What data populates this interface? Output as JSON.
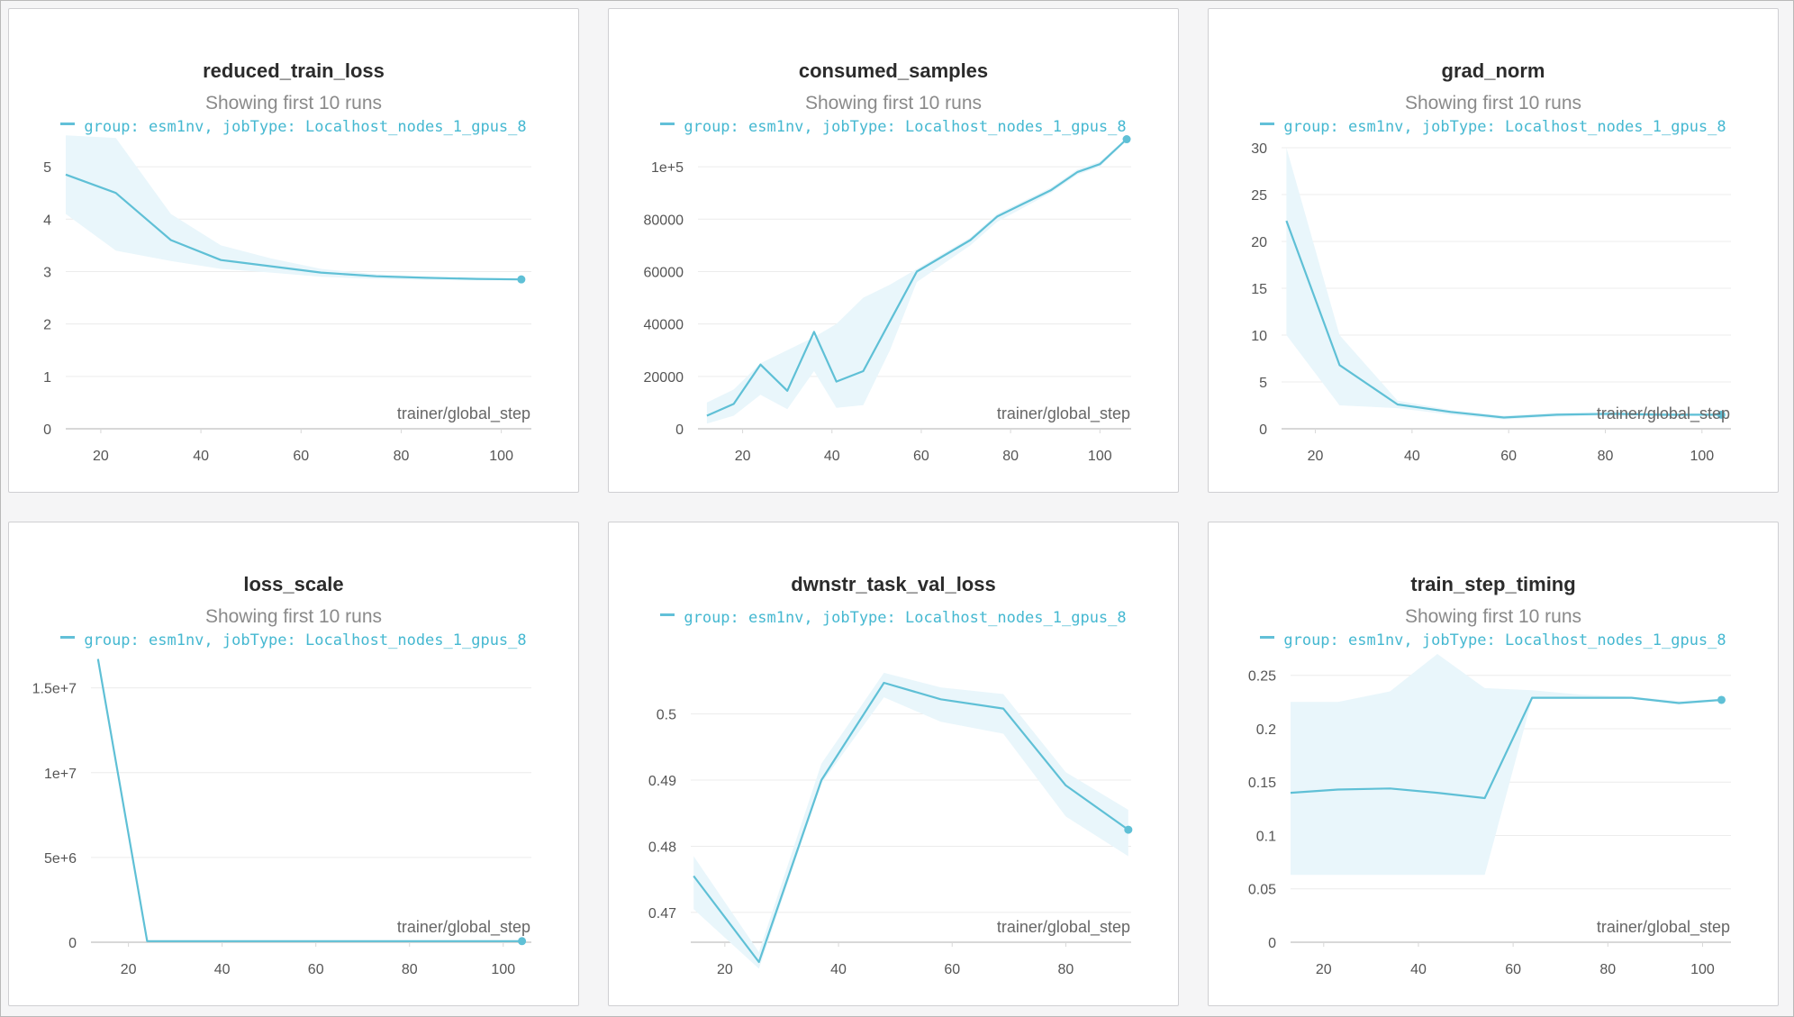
{
  "colors": {
    "line": "#5fc0d6",
    "band": "#e9f6fb",
    "grid": "#ececec",
    "axis": "#d8d8d8"
  },
  "panels": [
    {
      "title": "reduced_train_loss",
      "subtitle": "Showing first 10 runs",
      "legend": "group: esm1nv, jobType: Localhost_nodes_1_gpus_8",
      "xlabel": "trainer/global_step"
    },
    {
      "title": "consumed_samples",
      "subtitle": "Showing first 10 runs",
      "legend": "group: esm1nv, jobType: Localhost_nodes_1_gpus_8",
      "xlabel": "trainer/global_step"
    },
    {
      "title": "grad_norm",
      "subtitle": "Showing first 10 runs",
      "legend": "group: esm1nv, jobType: Localhost_nodes_1_gpus_8",
      "xlabel": "trainer/global_step"
    },
    {
      "title": "loss_scale",
      "subtitle": "Showing first 10 runs",
      "legend": "group: esm1nv, jobType: Localhost_nodes_1_gpus_8",
      "xlabel": "trainer/global_step"
    },
    {
      "title": "dwnstr_task_val_loss",
      "subtitle": "",
      "legend": "group: esm1nv, jobType: Localhost_nodes_1_gpus_8",
      "xlabel": "trainer/global_step"
    },
    {
      "title": "train_step_timing",
      "subtitle": "Showing first 10 runs",
      "legend": "group: esm1nv, jobType: Localhost_nodes_1_gpus_8",
      "xlabel": "trainer/global_step"
    }
  ],
  "chart_data": [
    {
      "type": "line",
      "title": "reduced_train_loss",
      "xlabel": "trainer/global_step",
      "ylabel": "",
      "xlim": [
        13,
        106
      ],
      "ylim": [
        0,
        5.5
      ],
      "xticks": [
        {
          "v": 20,
          "l": "20"
        },
        {
          "v": 40,
          "l": "40"
        },
        {
          "v": 60,
          "l": "60"
        },
        {
          "v": 80,
          "l": "80"
        },
        {
          "v": 100,
          "l": "100"
        }
      ],
      "yticks": [
        {
          "v": 0,
          "l": "0"
        },
        {
          "v": 1,
          "l": "1"
        },
        {
          "v": 2,
          "l": "2"
        },
        {
          "v": 3,
          "l": "3"
        },
        {
          "v": 4,
          "l": "4"
        },
        {
          "v": 5,
          "l": "5"
        }
      ],
      "series": [
        {
          "name": "group: esm1nv, jobType: Localhost_nodes_1_gpus_8",
          "x": [
            13,
            23,
            34,
            44,
            54,
            64,
            75,
            85,
            95,
            104
          ],
          "y": [
            4.85,
            4.5,
            3.6,
            3.22,
            3.1,
            2.98,
            2.91,
            2.88,
            2.86,
            2.85
          ],
          "min": [
            4.1,
            3.4,
            3.2,
            3.05,
            2.98,
            2.9,
            2.86,
            2.84,
            2.83,
            2.83
          ],
          "max": [
            5.6,
            5.55,
            4.1,
            3.5,
            3.25,
            3.05,
            2.95,
            2.9,
            2.88,
            2.87
          ]
        }
      ]
    },
    {
      "type": "line",
      "title": "consumed_samples",
      "xlabel": "trainer/global_step",
      "ylabel": "",
      "xlim": [
        10,
        107
      ],
      "ylim": [
        0,
        110000
      ],
      "xticks": [
        {
          "v": 20,
          "l": "20"
        },
        {
          "v": 40,
          "l": "40"
        },
        {
          "v": 60,
          "l": "60"
        },
        {
          "v": 80,
          "l": "80"
        },
        {
          "v": 100,
          "l": "100"
        }
      ],
      "yticks": [
        {
          "v": 0,
          "l": "0"
        },
        {
          "v": 20000,
          "l": "20000"
        },
        {
          "v": 40000,
          "l": "40000"
        },
        {
          "v": 60000,
          "l": "60000"
        },
        {
          "v": 80000,
          "l": "80000"
        },
        {
          "v": 100000,
          "l": "1e+5"
        }
      ],
      "series": [
        {
          "name": "group: esm1nv, jobType: Localhost_nodes_1_gpus_8",
          "x": [
            12,
            18,
            24,
            30,
            36,
            41,
            47,
            53,
            59,
            65,
            71,
            77,
            83,
            89,
            95,
            100,
            106
          ],
          "y": [
            5000,
            9500,
            24500,
            14500,
            37000,
            18000,
            22000,
            41000,
            60000,
            66000,
            72000,
            81000,
            86000,
            91000,
            98000,
            101000,
            110500
          ],
          "min": [
            2000,
            5000,
            13000,
            7500,
            22000,
            8000,
            9000,
            30000,
            56000,
            63000,
            70000,
            79000,
            84500,
            90000,
            97000,
            100000,
            110000
          ],
          "max": [
            10000,
            15000,
            25000,
            30000,
            35000,
            40000,
            50000,
            55000,
            61000,
            67000,
            73000,
            82000,
            87000,
            92000,
            99000,
            102000,
            111000
          ]
        }
      ]
    },
    {
      "type": "line",
      "title": "grad_norm",
      "xlabel": "trainer/global_step",
      "ylabel": "",
      "xlim": [
        13,
        106
      ],
      "ylim": [
        0,
        30
      ],
      "xticks": [
        {
          "v": 20,
          "l": "20"
        },
        {
          "v": 40,
          "l": "40"
        },
        {
          "v": 60,
          "l": "60"
        },
        {
          "v": 80,
          "l": "80"
        },
        {
          "v": 100,
          "l": "100"
        }
      ],
      "yticks": [
        {
          "v": 0,
          "l": "0"
        },
        {
          "v": 5,
          "l": "5"
        },
        {
          "v": 10,
          "l": "10"
        },
        {
          "v": 15,
          "l": "15"
        },
        {
          "v": 20,
          "l": "20"
        },
        {
          "v": 25,
          "l": "25"
        },
        {
          "v": 30,
          "l": "30"
        }
      ],
      "series": [
        {
          "name": "group: esm1nv, jobType: Localhost_nodes_1_gpus_8",
          "x": [
            14,
            25,
            37,
            48,
            59,
            70,
            81,
            92,
            104
          ],
          "y": [
            22.2,
            6.8,
            2.6,
            1.8,
            1.2,
            1.5,
            1.6,
            1.5,
            1.5
          ],
          "min": [
            10,
            2.5,
            2.2,
            1.5,
            1.0,
            1.3,
            1.4,
            1.35,
            1.4
          ],
          "max": [
            30,
            10,
            3.0,
            2.0,
            1.4,
            1.7,
            1.8,
            1.65,
            1.6
          ]
        }
      ]
    },
    {
      "type": "line",
      "title": "loss_scale",
      "xlabel": "trainer/global_step",
      "ylabel": "",
      "xlim": [
        12,
        106
      ],
      "ylim": [
        0,
        17000000
      ],
      "xticks": [
        {
          "v": 20,
          "l": "20"
        },
        {
          "v": 40,
          "l": "40"
        },
        {
          "v": 60,
          "l": "60"
        },
        {
          "v": 80,
          "l": "80"
        },
        {
          "v": 100,
          "l": "100"
        }
      ],
      "yticks": [
        {
          "v": 0,
          "l": "0"
        },
        {
          "v": 5000000,
          "l": "5e+6"
        },
        {
          "v": 10000000,
          "l": "1e+7"
        },
        {
          "v": 15000000,
          "l": "1.5e+7"
        }
      ],
      "series": [
        {
          "name": "group: esm1nv, jobType: Localhost_nodes_1_gpus_8",
          "x": [
            13.5,
            24,
            34,
            44,
            54,
            64,
            74,
            84,
            94,
            104
          ],
          "y": [
            16700000,
            65536,
            65536,
            65536,
            65536,
            65536,
            65536,
            65536,
            65536,
            65536
          ],
          "min": [
            16700000,
            65536,
            65536,
            65536,
            65536,
            65536,
            65536,
            65536,
            65536,
            65536
          ],
          "max": [
            16700000,
            65536,
            65536,
            65536,
            65536,
            65536,
            65536,
            65536,
            65536,
            65536
          ]
        }
      ]
    },
    {
      "type": "line",
      "title": "dwnstr_task_val_loss",
      "xlabel": "trainer/global_step",
      "ylabel": "",
      "xlim": [
        14,
        91.5
      ],
      "ylim": [
        0.4655,
        0.5115
      ],
      "xticks": [
        {
          "v": 20,
          "l": "20"
        },
        {
          "v": 40,
          "l": "40"
        },
        {
          "v": 60,
          "l": "60"
        },
        {
          "v": 80,
          "l": "80"
        }
      ],
      "yticks": [
        {
          "v": 0.47,
          "l": "0.47"
        },
        {
          "v": 0.48,
          "l": "0.48"
        },
        {
          "v": 0.49,
          "l": "0.49"
        },
        {
          "v": 0.5,
          "l": "0.5"
        }
      ],
      "series": [
        {
          "name": "group: esm1nv, jobType: Localhost_nodes_1_gpus_8",
          "x": [
            14.5,
            26,
            37,
            48,
            58,
            69,
            80,
            91
          ],
          "y": [
            0.4755,
            0.4625,
            0.49,
            0.5047,
            0.5022,
            0.5008,
            0.4892,
            0.4825
          ],
          "min": [
            0.4705,
            0.4615,
            0.4895,
            0.5025,
            0.4988,
            0.497,
            0.4845,
            0.4785
          ],
          "max": [
            0.4785,
            0.464,
            0.4925,
            0.5062,
            0.504,
            0.503,
            0.4912,
            0.4855
          ]
        }
      ]
    },
    {
      "type": "line",
      "title": "train_step_timing",
      "xlabel": "trainer/global_step",
      "ylabel": "",
      "xlim": [
        13,
        106
      ],
      "ylim": [
        0,
        0.27
      ],
      "xticks": [
        {
          "v": 20,
          "l": "20"
        },
        {
          "v": 40,
          "l": "40"
        },
        {
          "v": 60,
          "l": "60"
        },
        {
          "v": 80,
          "l": "80"
        },
        {
          "v": 100,
          "l": "100"
        }
      ],
      "yticks": [
        {
          "v": 0,
          "l": "0"
        },
        {
          "v": 0.05,
          "l": "0.05"
        },
        {
          "v": 0.1,
          "l": "0.1"
        },
        {
          "v": 0.15,
          "l": "0.15"
        },
        {
          "v": 0.2,
          "l": "0.2"
        },
        {
          "v": 0.25,
          "l": "0.25"
        }
      ],
      "series": [
        {
          "name": "group: esm1nv, jobType: Localhost_nodes_1_gpus_8",
          "x": [
            13,
            23,
            34,
            44,
            54,
            64,
            74,
            85,
            95,
            104
          ],
          "y": [
            0.14,
            0.143,
            0.144,
            0.14,
            0.135,
            0.229,
            0.229,
            0.229,
            0.224,
            0.227
          ],
          "min": [
            0.063,
            0.063,
            0.063,
            0.063,
            0.063,
            0.228,
            0.228,
            0.228,
            0.223,
            0.226
          ],
          "max": [
            0.225,
            0.225,
            0.235,
            0.27,
            0.238,
            0.236,
            0.232,
            0.23,
            0.226,
            0.228
          ]
        }
      ]
    }
  ]
}
